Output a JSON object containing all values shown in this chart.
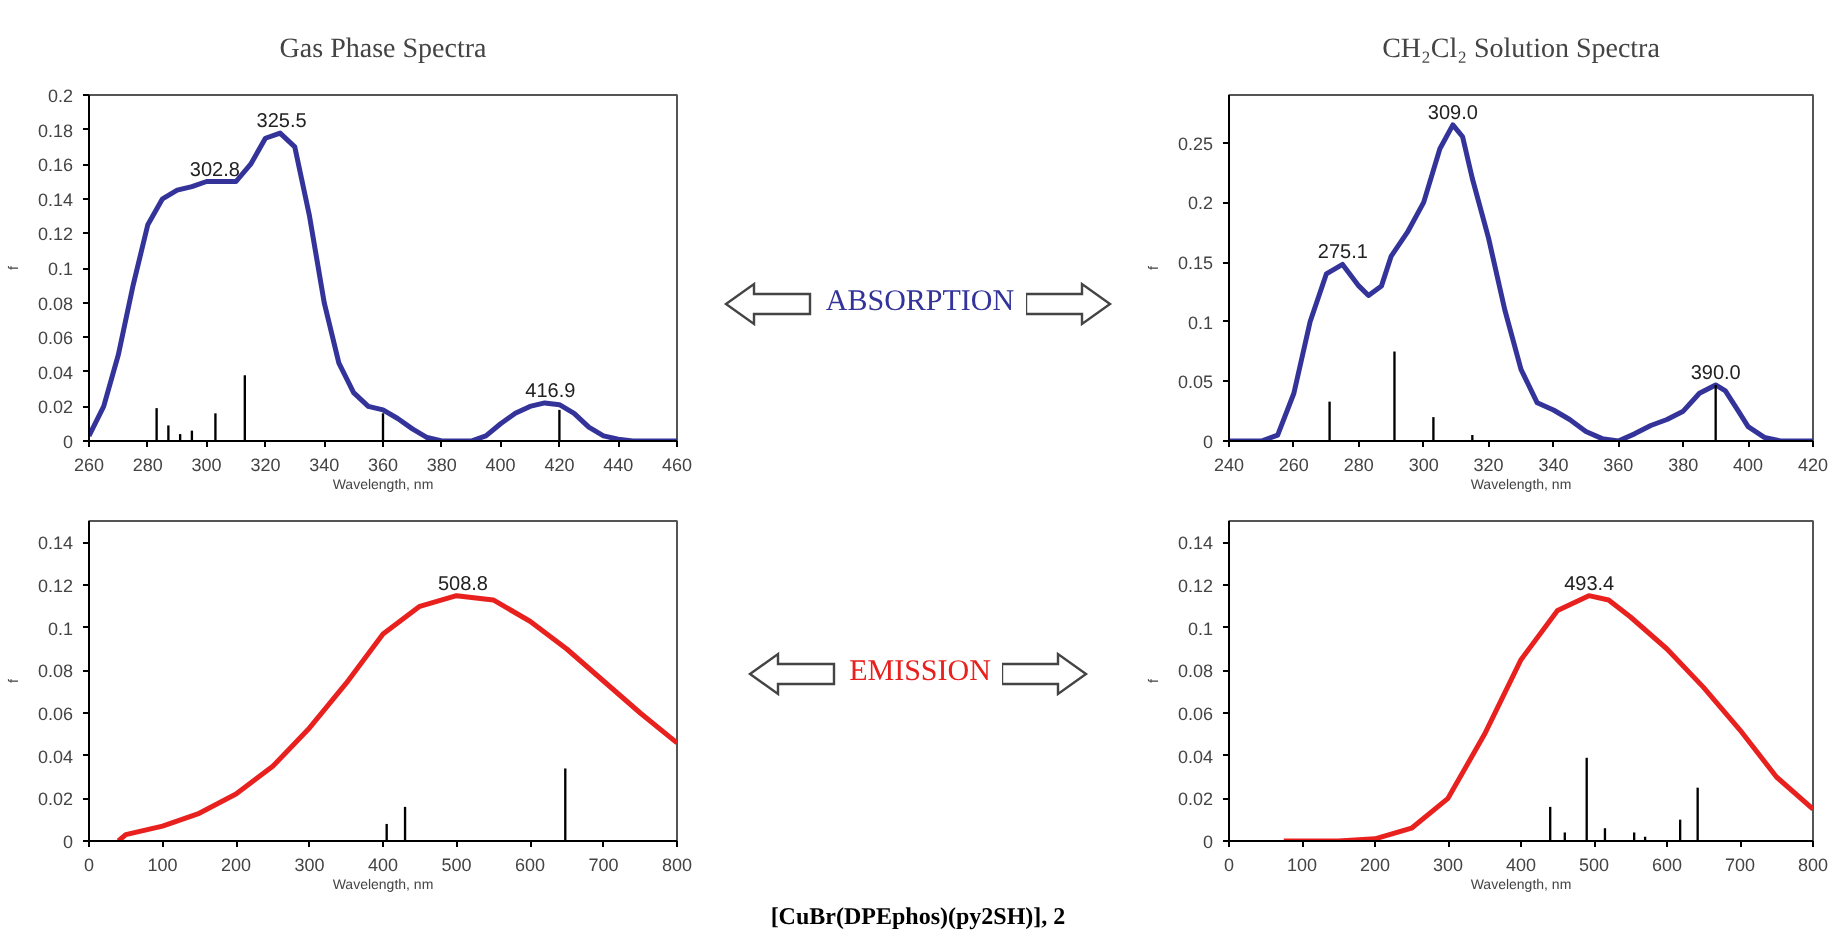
{
  "chart_data": [
    {
      "type": "line",
      "title": "Gas Phase Spectra",
      "xlabel": "Wavelength, nm",
      "ylabel": "f",
      "xlim": [
        260,
        460
      ],
      "ylim": [
        0,
        0.2
      ],
      "xticks": [
        260,
        280,
        300,
        320,
        340,
        360,
        380,
        400,
        420,
        440,
        460
      ],
      "yticks": [
        0,
        0.02,
        0.04,
        0.06,
        0.08,
        0.1,
        0.12,
        0.14,
        0.16,
        0.18,
        0.2
      ],
      "grid": false,
      "series": [
        {
          "color": "#33339a",
          "x": [
            260,
            265,
            270,
            275,
            280,
            285,
            290,
            295,
            300,
            305,
            310,
            315,
            320,
            325,
            330,
            335,
            340,
            345,
            350,
            355,
            360,
            365,
            370,
            375,
            380,
            390,
            395,
            400,
            405,
            410,
            415,
            420,
            425,
            430,
            435,
            440,
            445,
            460
          ],
          "values": [
            0.003,
            0.02,
            0.05,
            0.09,
            0.125,
            0.14,
            0.145,
            0.147,
            0.15,
            0.15,
            0.15,
            0.16,
            0.175,
            0.178,
            0.17,
            0.13,
            0.08,
            0.045,
            0.028,
            0.02,
            0.018,
            0.013,
            0.007,
            0.002,
            0,
            0,
            0.003,
            0.01,
            0.016,
            0.02,
            0.022,
            0.021,
            0.016,
            0.008,
            0.003,
            0.001,
            0,
            0
          ]
        },
        {
          "type": "bar",
          "color": "#000000",
          "x": [
            283,
            287,
            291,
            295,
            303,
            313,
            360,
            420
          ],
          "values": [
            0.019,
            0.009,
            0.004,
            0.006,
            0.016,
            0.038,
            0.016,
            0.018
          ]
        }
      ],
      "annotations": [
        {
          "text": "302.8",
          "x": 302.8,
          "y": 0.15
        },
        {
          "text": "325.5",
          "x": 325.5,
          "y": 0.178
        },
        {
          "text": "416.9",
          "x": 416.9,
          "y": 0.022
        },
        "ABSORPTION"
      ]
    },
    {
      "type": "line",
      "title": "CH₂Cl₂ Solution Spectra",
      "xlabel": "Wavelength, nm",
      "ylabel": "f",
      "xlim": [
        240,
        420
      ],
      "ylim": [
        0,
        0.29
      ],
      "xticks": [
        240,
        260,
        280,
        300,
        320,
        340,
        360,
        380,
        400,
        420
      ],
      "yticks": [
        0,
        0.05,
        0.1,
        0.15,
        0.2,
        0.25
      ],
      "grid": false,
      "series": [
        {
          "color": "#33339a",
          "x": [
            240,
            250,
            255,
            260,
            265,
            270,
            275,
            280,
            283,
            287,
            290,
            295,
            300,
            305,
            309,
            312,
            315,
            320,
            325,
            330,
            335,
            340,
            345,
            350,
            355,
            360,
            365,
            370,
            375,
            380,
            385,
            390,
            393,
            397,
            400,
            405,
            410,
            420
          ],
          "values": [
            0,
            0,
            0.005,
            0.04,
            0.1,
            0.14,
            0.148,
            0.13,
            0.122,
            0.13,
            0.155,
            0.175,
            0.2,
            0.245,
            0.265,
            0.255,
            0.22,
            0.17,
            0.11,
            0.06,
            0.032,
            0.026,
            0.018,
            0.008,
            0.002,
            0,
            0.006,
            0.013,
            0.018,
            0.025,
            0.04,
            0.047,
            0.042,
            0.025,
            0.012,
            0.003,
            0,
            0
          ]
        },
        {
          "type": "bar",
          "color": "#000000",
          "x": [
            271,
            291,
            303,
            315,
            390
          ],
          "values": [
            0.033,
            0.075,
            0.02,
            0.005,
            0.047
          ]
        }
      ],
      "annotations": [
        {
          "text": "275.1",
          "x": 275.1,
          "y": 0.148
        },
        {
          "text": "309.0",
          "x": 309.0,
          "y": 0.265
        },
        {
          "text": "390.0",
          "x": 390.0,
          "y": 0.047
        }
      ]
    },
    {
      "type": "line",
      "xlabel": "Wavelength, nm",
      "ylabel": "f",
      "xlim": [
        0,
        800
      ],
      "ylim": [
        0,
        0.15
      ],
      "xticks": [
        0,
        100,
        200,
        300,
        400,
        500,
        600,
        700,
        800
      ],
      "yticks": [
        0,
        0.02,
        0.04,
        0.06,
        0.08,
        0.1,
        0.12,
        0.14
      ],
      "grid": false,
      "series": [
        {
          "color": "#e8201e",
          "x": [
            40,
            50,
            100,
            150,
            200,
            250,
            300,
            350,
            400,
            450,
            500,
            550,
            600,
            650,
            700,
            750,
            800
          ],
          "values": [
            0,
            0.003,
            0.007,
            0.013,
            0.022,
            0.035,
            0.053,
            0.074,
            0.097,
            0.11,
            0.115,
            0.113,
            0.103,
            0.09,
            0.075,
            0.06,
            0.046
          ]
        },
        {
          "type": "bar",
          "color": "#000000",
          "x": [
            405,
            430,
            648
          ],
          "values": [
            0.008,
            0.016,
            0.034
          ]
        }
      ],
      "annotations": [
        {
          "text": "508.8",
          "x": 508.8,
          "y": 0.115
        },
        "EMISSION",
        "[CuBr(DPEphos)(py2SH)], 2"
      ]
    },
    {
      "type": "line",
      "xlabel": "Wavelength, nm",
      "ylabel": "f",
      "xlim": [
        0,
        800
      ],
      "ylim": [
        0,
        0.15
      ],
      "xticks": [
        0,
        100,
        200,
        300,
        400,
        500,
        600,
        700,
        800
      ],
      "yticks": [
        0,
        0.02,
        0.04,
        0.06,
        0.08,
        0.1,
        0.12,
        0.14
      ],
      "grid": false,
      "series": [
        {
          "color": "#e8201e",
          "x": [
            75,
            100,
            150,
            200,
            250,
            300,
            350,
            400,
            450,
            493,
            520,
            550,
            600,
            650,
            700,
            750,
            800
          ],
          "values": [
            0,
            0,
            0,
            0.001,
            0.006,
            0.02,
            0.05,
            0.085,
            0.108,
            0.115,
            0.113,
            0.105,
            0.09,
            0.072,
            0.052,
            0.03,
            0.015
          ]
        },
        {
          "type": "bar",
          "color": "#000000",
          "x": [
            440,
            460,
            490,
            515,
            555,
            570,
            618,
            642
          ],
          "values": [
            0.016,
            0.004,
            0.039,
            0.006,
            0.004,
            0.002,
            0.01,
            0.025
          ]
        }
      ],
      "annotations": [
        {
          "text": "493.4",
          "x": 493.4,
          "y": 0.115
        }
      ]
    }
  ]
}
